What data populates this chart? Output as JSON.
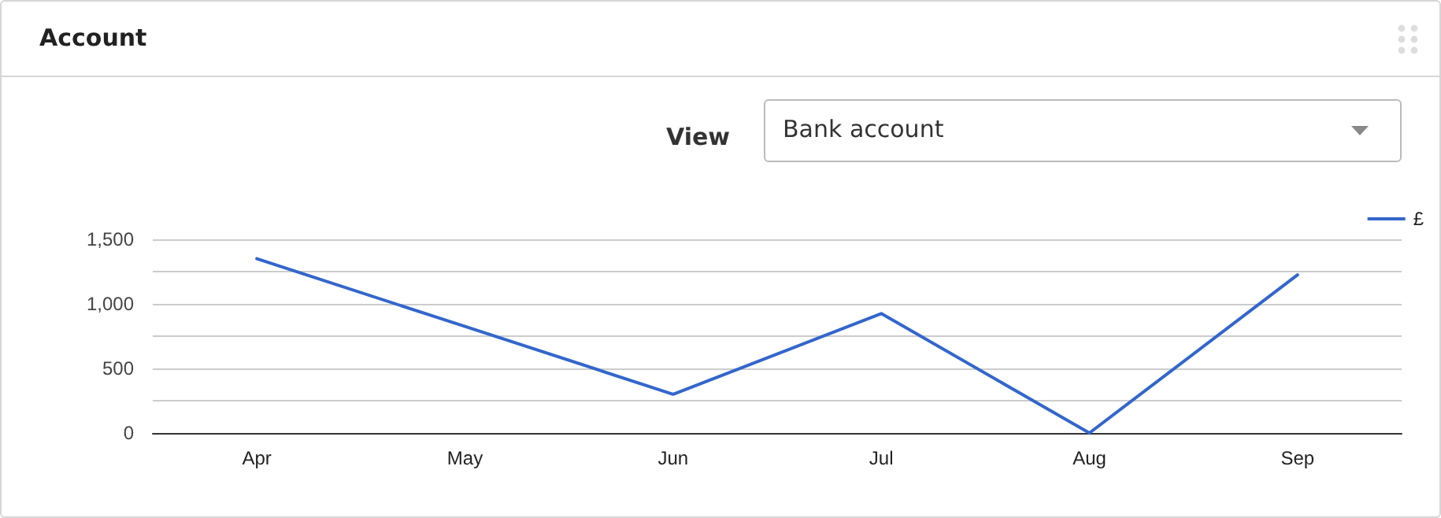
{
  "chart_data": {
    "type": "line",
    "title": "Account",
    "annotations": [
      "View",
      "Bank account"
    ],
    "categories": [
      "Apr",
      "May",
      "Jun",
      "Jul",
      "Aug",
      "Sep"
    ],
    "series": [
      {
        "name": "£",
        "color": "#3366cc",
        "values": [
          1350,
          825,
          300,
          925,
          0,
          1225
        ]
      }
    ],
    "ylim": [
      0,
      1500
    ],
    "yticks": [
      0,
      {
        "value": 250,
        "label": null
      },
      500,
      {
        "value": 750,
        "label": null
      },
      {
        "value": 1000,
        "label": "1,000"
      },
      {
        "value": 1250,
        "label": null
      },
      {
        "value": 1500,
        "label": "1,500"
      }
    ],
    "grid": "y",
    "legend": "top right",
    "marker": "none",
    "line_style": "solid"
  }
}
